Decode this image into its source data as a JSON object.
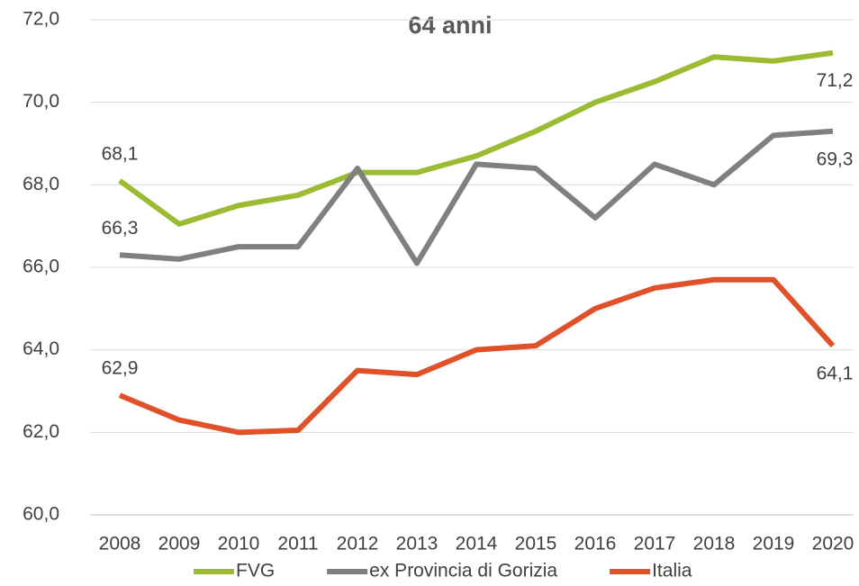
{
  "chart_data": {
    "type": "line",
    "title": "64 anni",
    "categories": [
      "2008",
      "2009",
      "2010",
      "2011",
      "2012",
      "2013",
      "2014",
      "2015",
      "2016",
      "2017",
      "2018",
      "2019",
      "2020"
    ],
    "series": [
      {
        "name": "FVG",
        "color": "#9bbb32",
        "values": [
          68.1,
          67.05,
          67.5,
          67.75,
          68.3,
          68.3,
          68.7,
          69.3,
          70.0,
          70.5,
          71.1,
          71.0,
          71.2
        ],
        "value_labels": [
          "68,1",
          null,
          null,
          null,
          null,
          null,
          null,
          null,
          null,
          null,
          null,
          null,
          "71,2"
        ]
      },
      {
        "name": "ex Provincia di Gorizia",
        "color": "#808080",
        "values": [
          66.3,
          66.2,
          66.5,
          66.5,
          68.4,
          66.1,
          68.5,
          68.4,
          67.2,
          68.5,
          68.0,
          69.2,
          69.3
        ],
        "value_labels": [
          "66,3",
          null,
          null,
          null,
          null,
          null,
          null,
          null,
          null,
          null,
          null,
          null,
          "69,3"
        ]
      },
      {
        "name": "Italia",
        "color": "#e0512a",
        "values": [
          62.9,
          62.3,
          62.0,
          62.05,
          63.5,
          63.4,
          64.0,
          64.1,
          65.0,
          65.5,
          65.7,
          65.7,
          64.1
        ],
        "value_labels": [
          "62,9",
          null,
          null,
          null,
          null,
          null,
          null,
          null,
          null,
          null,
          null,
          null,
          "64,1"
        ]
      }
    ],
    "ylim": [
      60,
      72
    ],
    "yticks": [
      {
        "value": 60,
        "label": "60,0"
      },
      {
        "value": 62,
        "label": "62,0"
      },
      {
        "value": 64,
        "label": "64,0"
      },
      {
        "value": 66,
        "label": "66,0"
      },
      {
        "value": 68,
        "label": "68,0"
      },
      {
        "value": 70,
        "label": "70,0"
      },
      {
        "value": 72,
        "label": "72,0"
      }
    ],
    "grid": true,
    "legend": "bottom"
  }
}
